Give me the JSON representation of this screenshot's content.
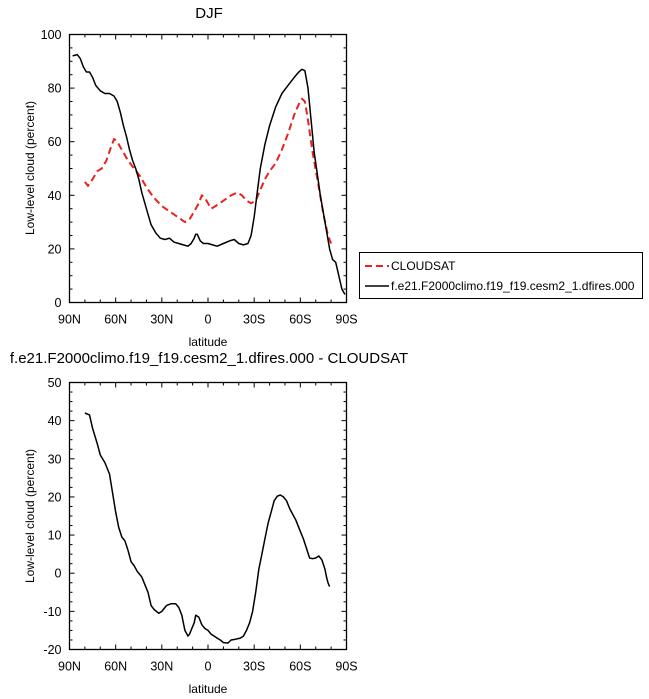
{
  "chart_data": [
    {
      "type": "line",
      "title": "DJF",
      "xlabel": "latitude",
      "ylabel": "Low-level cloud (percent)",
      "xlim": [
        90,
        -90
      ],
      "ylim": [
        0,
        100
      ],
      "x_tick_values": [
        90,
        60,
        30,
        0,
        -30,
        -60,
        -90
      ],
      "x_tick_labels": [
        "90N",
        "60N",
        "30N",
        "0",
        "30S",
        "60S",
        "90S"
      ],
      "y_ticks": [
        0,
        20,
        40,
        60,
        80,
        100
      ],
      "legend_position": "right",
      "series": [
        {
          "name": "CLOUDSAT",
          "color": "#e8231f",
          "dash": "dashed",
          "points": [
            [
              80,
              45
            ],
            [
              78,
              43.5
            ],
            [
              75,
              46
            ],
            [
              72,
              49
            ],
            [
              69,
              50
            ],
            [
              66,
              53
            ],
            [
              63,
              58
            ],
            [
              61,
              61
            ],
            [
              59,
              60
            ],
            [
              56,
              57
            ],
            [
              52,
              53
            ],
            [
              48,
              50
            ],
            [
              44,
              47
            ],
            [
              40,
              43
            ],
            [
              35,
              39
            ],
            [
              30,
              36
            ],
            [
              25,
              34
            ],
            [
              20,
              32
            ],
            [
              15,
              30
            ],
            [
              12,
              31
            ],
            [
              9,
              34
            ],
            [
              6,
              37
            ],
            [
              4,
              40
            ],
            [
              2,
              39
            ],
            [
              0,
              37
            ],
            [
              -2,
              35
            ],
            [
              -5,
              36
            ],
            [
              -10,
              38
            ],
            [
              -15,
              40
            ],
            [
              -19,
              41
            ],
            [
              -22,
              40
            ],
            [
              -25,
              38
            ],
            [
              -28,
              37
            ],
            [
              -31,
              38
            ],
            [
              -34,
              42
            ],
            [
              -37,
              46
            ],
            [
              -40,
              49
            ],
            [
              -44,
              52
            ],
            [
              -48,
              57
            ],
            [
              -52,
              63
            ],
            [
              -56,
              70
            ],
            [
              -59,
              74
            ],
            [
              -61,
              76
            ],
            [
              -63,
              75
            ],
            [
              -65,
              68
            ],
            [
              -68,
              56
            ],
            [
              -72,
              43
            ],
            [
              -75,
              33
            ],
            [
              -78,
              25
            ],
            [
              -80,
              22
            ]
          ]
        },
        {
          "name": "f.e21.F2000climo.f19_f19.cesm2_1.dfires.000",
          "color": "#000000",
          "dash": "solid",
          "points": [
            [
              88,
              92
            ],
            [
              85,
              92.5
            ],
            [
              83,
              91
            ],
            [
              81,
              88
            ],
            [
              79,
              86
            ],
            [
              77,
              86
            ],
            [
              75,
              84
            ],
            [
              73,
              81
            ],
            [
              70,
              79
            ],
            [
              67,
              78
            ],
            [
              64,
              78
            ],
            [
              61,
              77
            ],
            [
              59,
              75
            ],
            [
              57,
              71
            ],
            [
              55,
              66
            ],
            [
              53,
              62
            ],
            [
              51,
              57
            ],
            [
              49,
              53
            ],
            [
              47,
              50
            ],
            [
              45,
              46
            ],
            [
              43,
              41
            ],
            [
              40,
              35
            ],
            [
              37,
              29
            ],
            [
              34,
              26
            ],
            [
              31,
              24
            ],
            [
              28,
              23.5
            ],
            [
              25,
              24
            ],
            [
              22,
              22.5
            ],
            [
              19,
              22
            ],
            [
              16,
              21.5
            ],
            [
              13,
              21
            ],
            [
              11,
              22
            ],
            [
              9,
              24
            ],
            [
              8,
              25.5
            ],
            [
              7,
              25.5
            ],
            [
              5,
              23
            ],
            [
              3,
              22
            ],
            [
              0,
              22
            ],
            [
              -3,
              21.5
            ],
            [
              -6,
              21
            ],
            [
              -10,
              22
            ],
            [
              -14,
              23
            ],
            [
              -17,
              23.5
            ],
            [
              -20,
              22
            ],
            [
              -23,
              21.5
            ],
            [
              -26,
              22
            ],
            [
              -28,
              25
            ],
            [
              -30,
              32
            ],
            [
              -32,
              41
            ],
            [
              -34,
              50
            ],
            [
              -37,
              59
            ],
            [
              -40,
              66
            ],
            [
              -44,
              73
            ],
            [
              -48,
              78
            ],
            [
              -52,
              81
            ],
            [
              -56,
              84
            ],
            [
              -59,
              86
            ],
            [
              -61,
              87
            ],
            [
              -63,
              86.5
            ],
            [
              -65,
              80
            ],
            [
              -67,
              68
            ],
            [
              -69,
              56
            ],
            [
              -71,
              48
            ],
            [
              -73,
              40
            ],
            [
              -76,
              30
            ],
            [
              -79,
              20
            ],
            [
              -81,
              16
            ],
            [
              -83,
              15
            ],
            [
              -85,
              10
            ],
            [
              -87,
              5
            ],
            [
              -89,
              3
            ]
          ]
        }
      ]
    },
    {
      "type": "line",
      "title": "f.e21.F2000climo.f19_f19.cesm2_1.dfires.000 - CLOUDSAT",
      "xlabel": "latitude",
      "ylabel": "Low-level cloud (percent)",
      "xlim": [
        90,
        -90
      ],
      "ylim": [
        -20,
        50
      ],
      "x_tick_values": [
        90,
        60,
        30,
        0,
        -30,
        -60,
        -90
      ],
      "x_tick_labels": [
        "90N",
        "60N",
        "30N",
        "0",
        "30S",
        "60S",
        "90S"
      ],
      "y_ticks": [
        -20,
        -10,
        0,
        10,
        20,
        30,
        40,
        50
      ],
      "series": [
        {
          "color": "#000000",
          "dash": "solid",
          "points": [
            [
              80,
              42
            ],
            [
              77,
              41.5
            ],
            [
              75,
              38
            ],
            [
              72,
              34
            ],
            [
              70,
              31
            ],
            [
              67,
              29
            ],
            [
              64,
              26
            ],
            [
              62,
              21
            ],
            [
              60,
              16
            ],
            [
              58,
              12
            ],
            [
              56,
              9.5
            ],
            [
              54,
              8.5
            ],
            [
              52,
              6
            ],
            [
              50,
              3
            ],
            [
              48,
              2
            ],
            [
              46,
              0.5
            ],
            [
              43,
              -1
            ],
            [
              41,
              -3
            ],
            [
              39,
              -5
            ],
            [
              37,
              -8.5
            ],
            [
              35,
              -9.5
            ],
            [
              32,
              -10.5
            ],
            [
              30,
              -10
            ],
            [
              27,
              -8.5
            ],
            [
              24,
              -8
            ],
            [
              21,
              -8
            ],
            [
              19,
              -9
            ],
            [
              17,
              -11
            ],
            [
              15,
              -15
            ],
            [
              13,
              -16.5
            ],
            [
              12,
              -16
            ],
            [
              10,
              -14
            ],
            [
              9,
              -13
            ],
            [
              8,
              -11
            ],
            [
              6,
              -11.5
            ],
            [
              4,
              -13.5
            ],
            [
              2,
              -14.5
            ],
            [
              0,
              -15
            ],
            [
              -2,
              -16
            ],
            [
              -4,
              -16.5
            ],
            [
              -6,
              -17
            ],
            [
              -8,
              -17.5
            ],
            [
              -10,
              -18.2
            ],
            [
              -13,
              -18.3
            ],
            [
              -15,
              -17.5
            ],
            [
              -18,
              -17.3
            ],
            [
              -21,
              -17
            ],
            [
              -23,
              -16.5
            ],
            [
              -25,
              -15
            ],
            [
              -27,
              -13
            ],
            [
              -29,
              -10
            ],
            [
              -31,
              -5
            ],
            [
              -33,
              1
            ],
            [
              -35,
              5
            ],
            [
              -37,
              9
            ],
            [
              -39,
              13
            ],
            [
              -41,
              16
            ],
            [
              -43,
              19
            ],
            [
              -45,
              20.2
            ],
            [
              -47,
              20.5
            ],
            [
              -49,
              20
            ],
            [
              -51,
              19
            ],
            [
              -53,
              17
            ],
            [
              -55,
              15.5
            ],
            [
              -57,
              14
            ],
            [
              -60,
              11
            ],
            [
              -62,
              9
            ],
            [
              -64,
              6.5
            ],
            [
              -66,
              4
            ],
            [
              -68,
              3.8
            ],
            [
              -70,
              4
            ],
            [
              -72,
              4.5
            ],
            [
              -74,
              3.5
            ],
            [
              -76,
              1
            ],
            [
              -77,
              -1
            ],
            [
              -78,
              -2.5
            ],
            [
              -79,
              -3.5
            ]
          ]
        }
      ]
    }
  ]
}
